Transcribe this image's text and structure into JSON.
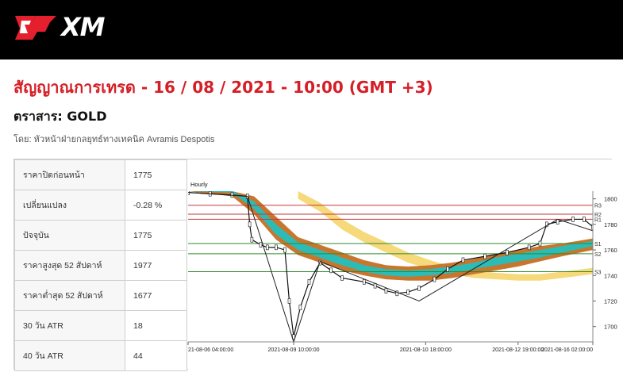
{
  "brand": {
    "name": "XM",
    "logo_color": "#e4202e"
  },
  "page": {
    "title": "สัญญาณการเทรด - 16 / 08 / 2021 - 10:00 (GMT +3)",
    "instrument": "ตราสาร: GOLD",
    "author": "โดย: หัวหน้าฝ่ายกลยุทธ์ทางเทคนิค Avramis Despotis"
  },
  "stats": [
    {
      "label": "ราคาปิดก่อนหน้า",
      "value": "1775"
    },
    {
      "label": "เปลี่ยนแปลง",
      "value": "-0.28 %"
    },
    {
      "label": "ปัจจุบัน",
      "value": "1775"
    },
    {
      "label": "ราคาสูงสุด 52 สัปดาห์",
      "value": "1977"
    },
    {
      "label": "ราคาต่ำสุด 52 สัปดาห์",
      "value": "1677"
    },
    {
      "label": "30 วัน ATR",
      "value": "18"
    },
    {
      "label": "40 วัน ATR",
      "value": "44"
    }
  ],
  "chart_data": {
    "type": "line",
    "timeframe_label": "Hourly",
    "y_ticks": [
      1700,
      1720,
      1740,
      1760,
      1780,
      1800
    ],
    "ylim": [
      1688,
      1806
    ],
    "x_tick_labels": [
      "21-08-06 04:00:00",
      "2021-08-09 10:00:00",
      "2021-08-10 18:00:00",
      "2021-08-12 19:00:00",
      "2021-08-16 02:00:00"
    ],
    "levels": [
      {
        "name": "R3",
        "value": 1795,
        "color": "#c23a3a"
      },
      {
        "name": "R2",
        "value": 1788,
        "color": "#c23a3a"
      },
      {
        "name": "R1",
        "value": 1784,
        "color": "#c23a3a"
      },
      {
        "name": "S1",
        "value": 1765,
        "color": "#2e8b2e"
      },
      {
        "name": "S2",
        "value": 1757,
        "color": "#2e8b2e"
      },
      {
        "name": "S3",
        "value": 1743,
        "color": "#2e8b2e"
      }
    ],
    "price_path": [
      [
        0,
        1805
      ],
      [
        10,
        1804
      ],
      [
        20,
        1803
      ],
      [
        27,
        1802
      ],
      [
        28,
        1780
      ],
      [
        29,
        1768
      ],
      [
        33,
        1764
      ],
      [
        36,
        1762
      ],
      [
        40,
        1762
      ],
      [
        44,
        1760
      ],
      [
        46,
        1720
      ],
      [
        48,
        1692
      ],
      [
        51,
        1715
      ],
      [
        55,
        1735
      ],
      [
        60,
        1750
      ],
      [
        65,
        1744
      ],
      [
        70,
        1738
      ],
      [
        80,
        1735
      ],
      [
        85,
        1732
      ],
      [
        90,
        1728
      ],
      [
        95,
        1726
      ],
      [
        100,
        1727
      ],
      [
        105,
        1730
      ],
      [
        112,
        1737
      ],
      [
        118,
        1745
      ],
      [
        125,
        1752
      ],
      [
        135,
        1755
      ],
      [
        145,
        1758
      ],
      [
        155,
        1762
      ],
      [
        160,
        1765
      ],
      [
        163,
        1780
      ],
      [
        168,
        1782
      ],
      [
        175,
        1784
      ],
      [
        180,
        1784
      ],
      [
        184,
        1778
      ]
    ],
    "zigzag": [
      [
        0,
        1805
      ],
      [
        27,
        1802
      ],
      [
        48,
        1688
      ],
      [
        60,
        1751
      ],
      [
        105,
        1720
      ],
      [
        168,
        1784
      ],
      [
        184,
        1775
      ]
    ],
    "band_inner": {
      "color": "#2bbcb8",
      "upper": [
        [
          0,
          1806
        ],
        [
          20,
          1806
        ],
        [
          30,
          1798
        ],
        [
          40,
          1780
        ],
        [
          50,
          1766
        ],
        [
          60,
          1760
        ],
        [
          70,
          1754
        ],
        [
          80,
          1748
        ],
        [
          90,
          1745
        ],
        [
          100,
          1744
        ],
        [
          110,
          1745
        ],
        [
          120,
          1747
        ],
        [
          130,
          1750
        ],
        [
          140,
          1754
        ],
        [
          150,
          1757
        ],
        [
          160,
          1760
        ],
        [
          170,
          1763
        ],
        [
          184,
          1767
        ]
      ],
      "lower": [
        [
          0,
          1806
        ],
        [
          20,
          1805
        ],
        [
          30,
          1792
        ],
        [
          40,
          1772
        ],
        [
          50,
          1760
        ],
        [
          60,
          1754
        ],
        [
          70,
          1748
        ],
        [
          80,
          1743
        ],
        [
          90,
          1740
        ],
        [
          100,
          1739
        ],
        [
          110,
          1740
        ],
        [
          120,
          1742
        ],
        [
          130,
          1745
        ],
        [
          140,
          1748
        ],
        [
          150,
          1751
        ],
        [
          160,
          1754
        ],
        [
          170,
          1758
        ],
        [
          184,
          1763
        ]
      ]
    },
    "band_outer": {
      "color": "#c8762e",
      "upper": [
        [
          0,
          1806
        ],
        [
          20,
          1806
        ],
        [
          30,
          1802
        ],
        [
          40,
          1786
        ],
        [
          50,
          1770
        ],
        [
          60,
          1764
        ],
        [
          70,
          1758
        ],
        [
          80,
          1752
        ],
        [
          90,
          1748
        ],
        [
          100,
          1747
        ],
        [
          110,
          1748
        ],
        [
          120,
          1750
        ],
        [
          130,
          1753
        ],
        [
          140,
          1757
        ],
        [
          150,
          1760
        ],
        [
          160,
          1763
        ],
        [
          170,
          1765
        ],
        [
          184,
          1769
        ]
      ],
      "lower": [
        [
          0,
          1806
        ],
        [
          20,
          1802
        ],
        [
          30,
          1788
        ],
        [
          40,
          1768
        ],
        [
          50,
          1756
        ],
        [
          60,
          1750
        ],
        [
          70,
          1744
        ],
        [
          80,
          1740
        ],
        [
          90,
          1737
        ],
        [
          100,
          1736
        ],
        [
          110,
          1736
        ],
        [
          120,
          1738
        ],
        [
          130,
          1741
        ],
        [
          140,
          1744
        ],
        [
          150,
          1747
        ],
        [
          160,
          1751
        ],
        [
          170,
          1755
        ],
        [
          184,
          1760
        ]
      ]
    },
    "band_yellow": {
      "color": "#f6d97a",
      "upper": [
        [
          50,
          1806
        ],
        [
          60,
          1797
        ],
        [
          70,
          1784
        ],
        [
          80,
          1774
        ],
        [
          90,
          1766
        ],
        [
          100,
          1758
        ],
        [
          110,
          1752
        ],
        [
          120,
          1747
        ],
        [
          130,
          1744
        ],
        [
          140,
          1742
        ],
        [
          150,
          1741
        ],
        [
          160,
          1741
        ],
        [
          170,
          1743
        ],
        [
          184,
          1746
        ]
      ],
      "lower": [
        [
          50,
          1800
        ],
        [
          60,
          1790
        ],
        [
          70,
          1776
        ],
        [
          80,
          1766
        ],
        [
          90,
          1758
        ],
        [
          100,
          1750
        ],
        [
          110,
          1745
        ],
        [
          120,
          1741
        ],
        [
          130,
          1738
        ],
        [
          140,
          1737
        ],
        [
          150,
          1736
        ],
        [
          160,
          1736
        ],
        [
          170,
          1738
        ],
        [
          184,
          1741
        ]
      ]
    }
  }
}
